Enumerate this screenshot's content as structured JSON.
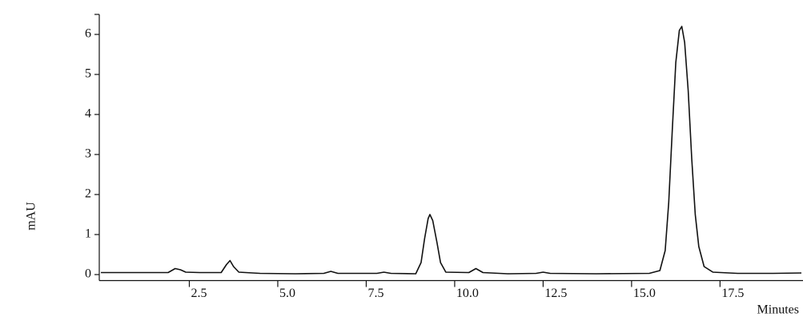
{
  "chart_data": {
    "type": "line",
    "y_label": "mAU",
    "x_label": "Minutes",
    "x": [
      0,
      1.0,
      1.9,
      2.1,
      2.25,
      2.4,
      2.8,
      3.4,
      3.55,
      3.65,
      3.75,
      3.9,
      4.5,
      5.5,
      6.3,
      6.5,
      6.7,
      7.8,
      8.0,
      8.2,
      8.9,
      9.05,
      9.15,
      9.25,
      9.3,
      9.38,
      9.5,
      9.6,
      9.75,
      10.4,
      10.6,
      10.8,
      11.5,
      12.3,
      12.5,
      12.7,
      14.0,
      15.5,
      15.8,
      15.95,
      16.05,
      16.15,
      16.25,
      16.35,
      16.42,
      16.5,
      16.6,
      16.7,
      16.8,
      16.9,
      17.05,
      17.3,
      18.0,
      19.0,
      19.8
    ],
    "values": [
      0.05,
      0.05,
      0.05,
      0.15,
      0.12,
      0.06,
      0.05,
      0.05,
      0.25,
      0.35,
      0.2,
      0.06,
      0.03,
      0.02,
      0.03,
      0.08,
      0.03,
      0.03,
      0.06,
      0.03,
      0.02,
      0.3,
      0.9,
      1.4,
      1.5,
      1.35,
      0.8,
      0.3,
      0.06,
      0.05,
      0.15,
      0.05,
      0.02,
      0.03,
      0.06,
      0.03,
      0.02,
      0.03,
      0.1,
      0.6,
      1.8,
      3.6,
      5.3,
      6.1,
      6.2,
      5.8,
      4.6,
      2.9,
      1.5,
      0.7,
      0.2,
      0.06,
      0.03,
      0.03,
      0.04
    ],
    "color": "#111111",
    "xlim": [
      0,
      19.8
    ],
    "xticks": [
      2.5,
      {
        "value": 5,
        "label": "5.0"
      },
      7.5,
      {
        "value": 10,
        "label": "10.0"
      },
      12.5,
      {
        "value": 15,
        "label": "15.0"
      },
      17.5
    ],
    "ylim": [
      -0.15,
      6.5
    ],
    "yticks": [
      0,
      1,
      2,
      3,
      4,
      5,
      6
    ]
  }
}
